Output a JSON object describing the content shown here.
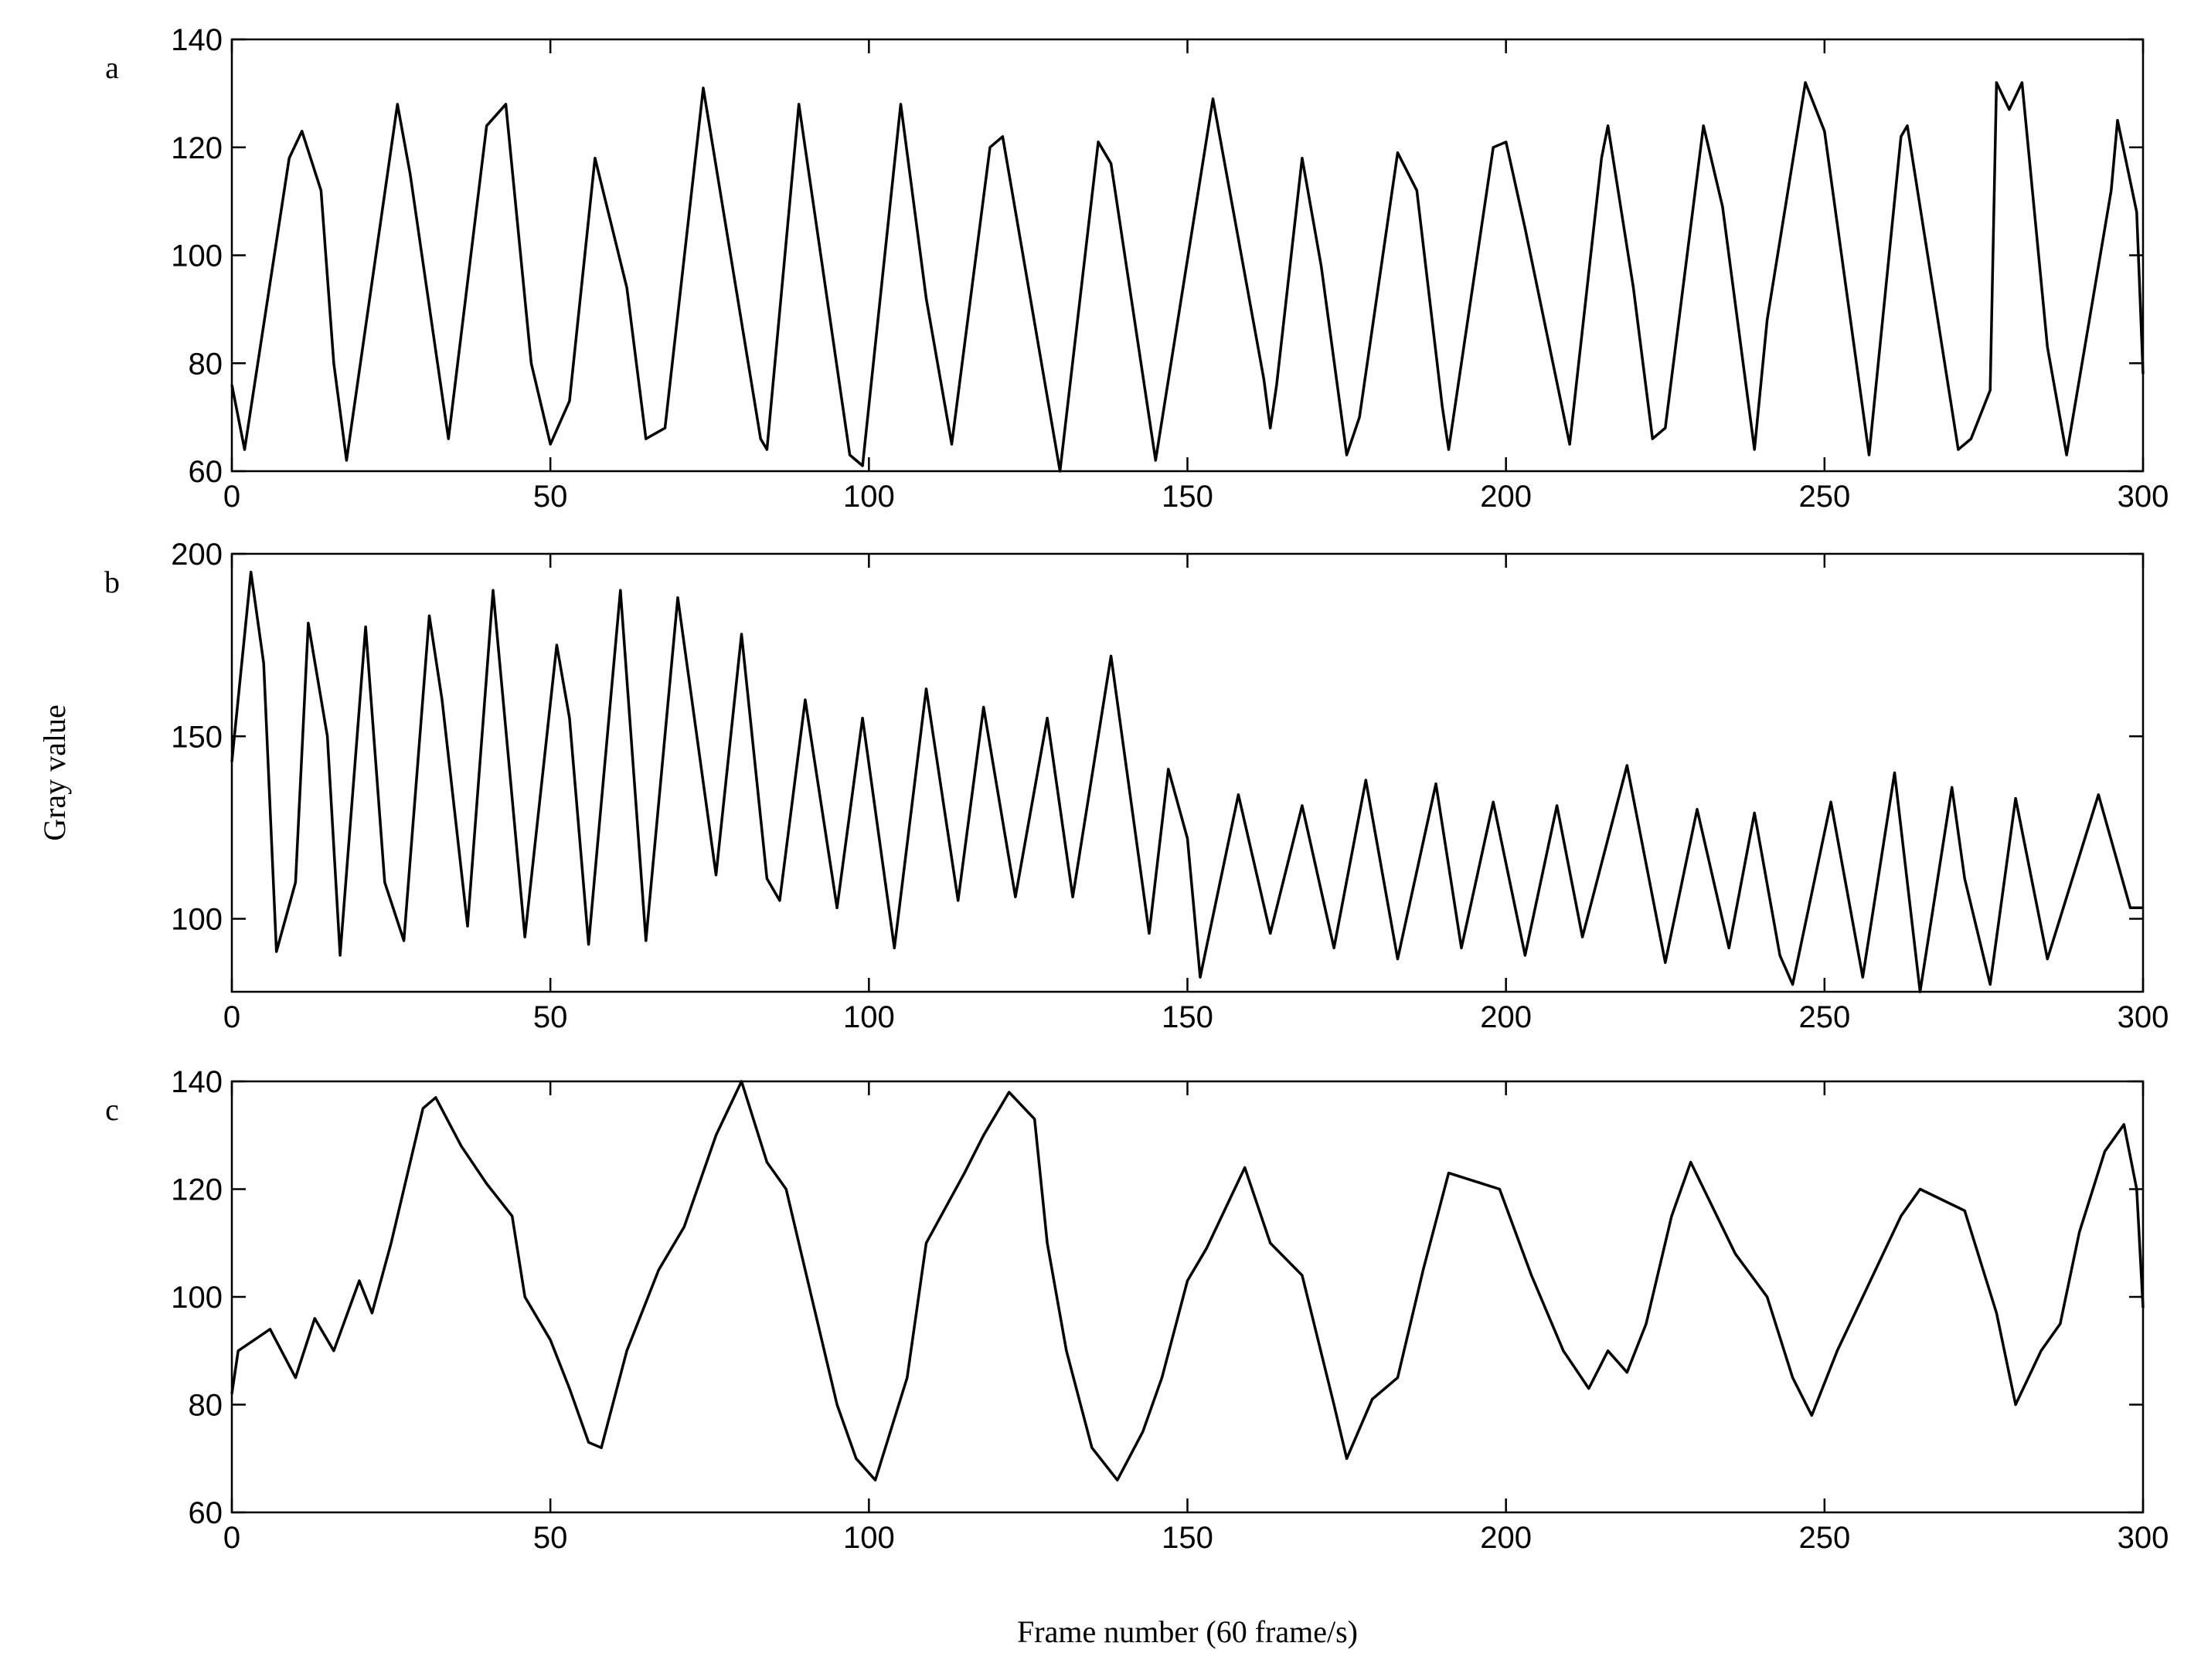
{
  "chart_data": [
    {
      "type": "line",
      "label": "a",
      "color": "#000000",
      "xlim": [
        0,
        300
      ],
      "xticks": [
        0,
        50,
        100,
        150,
        200,
        250,
        300
      ],
      "ylim": [
        60,
        140
      ],
      "yticks": [
        60,
        80,
        100,
        120,
        140
      ],
      "x": [
        0,
        2,
        9,
        11,
        14,
        16,
        18,
        26,
        28,
        34,
        40,
        43,
        47,
        50,
        53,
        57,
        62,
        65,
        68,
        74,
        83,
        84,
        89,
        97,
        99,
        105,
        109,
        113,
        119,
        121,
        130,
        136,
        138,
        145,
        154,
        162,
        163,
        164,
        168,
        171,
        175,
        177,
        183,
        186,
        190,
        191,
        198,
        200,
        203,
        210,
        215,
        216,
        220,
        223,
        225,
        231,
        234,
        239,
        241,
        247,
        250,
        257,
        262,
        263,
        271,
        273,
        276,
        277,
        279,
        281,
        285,
        288,
        295,
        296,
        299,
        300
      ],
      "values": [
        76,
        64,
        118,
        123,
        112,
        80,
        62,
        128,
        115,
        66,
        124,
        128,
        80,
        65,
        73,
        118,
        94,
        66,
        68,
        131,
        66,
        64,
        128,
        63,
        61,
        128,
        92,
        65,
        120,
        122,
        60,
        121,
        117,
        62,
        129,
        77,
        68,
        76,
        118,
        98,
        63,
        70,
        119,
        112,
        72,
        64,
        120,
        121,
        105,
        65,
        118,
        124,
        94,
        66,
        68,
        124,
        109,
        64,
        88,
        132,
        123,
        63,
        122,
        124,
        64,
        66,
        75,
        132,
        127,
        132,
        83,
        63,
        112,
        125,
        108,
        78
      ]
    },
    {
      "type": "line",
      "label": "b",
      "ylabel": "Gray value",
      "color": "#000000",
      "xlim": [
        0,
        300
      ],
      "xticks": [
        0,
        50,
        100,
        150,
        200,
        250,
        300
      ],
      "ylim": [
        80,
        200
      ],
      "yticks": [
        100,
        150,
        200
      ],
      "x": [
        0,
        3,
        5,
        7,
        10,
        12,
        15,
        17,
        21,
        24,
        27,
        31,
        33,
        37,
        41,
        46,
        51,
        53,
        56,
        61,
        65,
        70,
        76,
        80,
        84,
        86,
        90,
        95,
        99,
        104,
        109,
        114,
        118,
        123,
        128,
        132,
        138,
        144,
        147,
        150,
        152,
        158,
        163,
        168,
        173,
        178,
        183,
        189,
        193,
        198,
        203,
        208,
        212,
        219,
        225,
        230,
        235,
        239,
        243,
        245,
        251,
        256,
        261,
        265,
        270,
        272,
        276,
        280,
        285,
        293,
        298,
        300
      ],
      "values": [
        143,
        195,
        170,
        91,
        110,
        181,
        150,
        90,
        180,
        110,
        94,
        183,
        160,
        98,
        190,
        95,
        175,
        155,
        93,
        190,
        94,
        188,
        112,
        178,
        111,
        105,
        160,
        103,
        155,
        92,
        163,
        105,
        158,
        106,
        155,
        106,
        172,
        96,
        141,
        122,
        84,
        134,
        96,
        131,
        92,
        138,
        89,
        137,
        92,
        132,
        90,
        131,
        95,
        142,
        88,
        130,
        92,
        129,
        90,
        82,
        132,
        84,
        140,
        80,
        136,
        111,
        82,
        133,
        89,
        134,
        103,
        103
      ]
    },
    {
      "type": "line",
      "label": "c",
      "xlabel": "Frame number (60 frame/s)",
      "color": "#000000",
      "xlim": [
        0,
        300
      ],
      "xticks": [
        0,
        50,
        100,
        150,
        200,
        250,
        300
      ],
      "ylim": [
        60,
        140
      ],
      "yticks": [
        60,
        80,
        100,
        120,
        140
      ],
      "x": [
        0,
        1,
        6,
        10,
        13,
        16,
        20,
        22,
        25,
        30,
        32,
        36,
        40,
        44,
        46,
        50,
        53,
        56,
        58,
        62,
        67,
        71,
        76,
        80,
        84,
        87,
        91,
        95,
        98,
        101,
        106,
        109,
        115,
        118,
        122,
        126,
        128,
        131,
        135,
        139,
        143,
        146,
        150,
        153,
        159,
        163,
        168,
        173,
        175,
        179,
        183,
        187,
        191,
        199,
        204,
        209,
        213,
        216,
        219,
        222,
        226,
        229,
        236,
        241,
        245,
        248,
        252,
        256,
        262,
        265,
        272,
        277,
        280,
        284,
        287,
        290,
        294,
        297,
        299,
        300
      ],
      "values": [
        82,
        90,
        94,
        85,
        96,
        90,
        103,
        97,
        110,
        135,
        137,
        128,
        121,
        115,
        100,
        92,
        83,
        73,
        72,
        90,
        105,
        113,
        130,
        140,
        125,
        120,
        100,
        80,
        70,
        66,
        85,
        110,
        123,
        130,
        138,
        133,
        110,
        90,
        72,
        66,
        75,
        85,
        103,
        109,
        124,
        110,
        104,
        80,
        70,
        81,
        85,
        105,
        123,
        120,
        104,
        90,
        83,
        90,
        86,
        95,
        115,
        125,
        108,
        100,
        85,
        78,
        90,
        100,
        115,
        120,
        116,
        97,
        80,
        90,
        95,
        112,
        127,
        132,
        120,
        98
      ]
    }
  ]
}
